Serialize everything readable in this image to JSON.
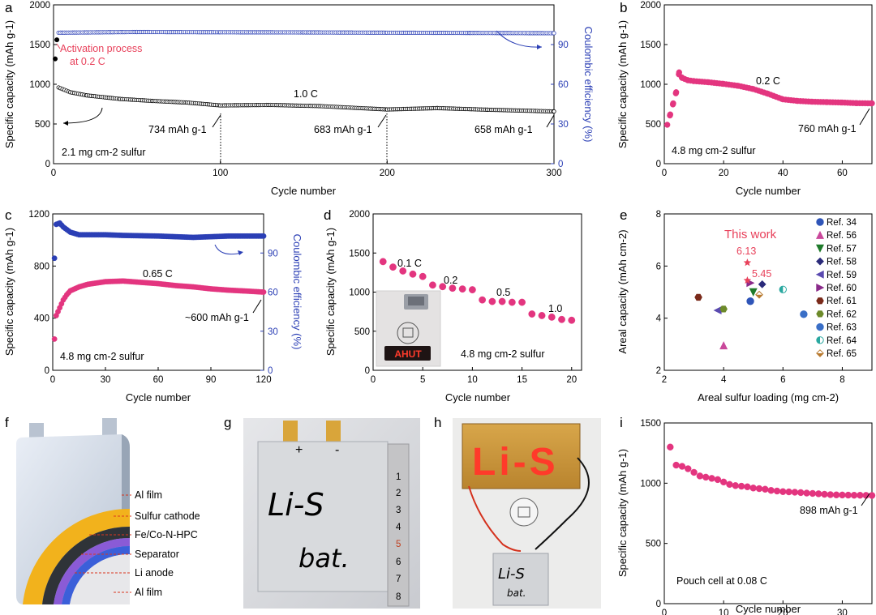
{
  "chart_data": [
    {
      "panel": "a",
      "type": "scatter",
      "xlabel": "Cycle number",
      "ylabel": "Specific capacity (mAh g-1)",
      "y2label": "Coulombic efficiency (%)",
      "xlim": [
        0,
        300
      ],
      "ylim": [
        0,
        2000
      ],
      "y2lim": [
        0,
        120
      ],
      "xticks": [
        0,
        100,
        200,
        300
      ],
      "yticks": [
        0,
        500,
        1000,
        1500,
        2000
      ],
      "y2ticks": [
        0,
        30,
        60,
        90
      ],
      "series": [
        {
          "axis": "left",
          "color": "#000000",
          "activation": [
            [
              1,
              1320
            ],
            [
              2,
              1560
            ]
          ],
          "curve": [
            [
              3,
              960
            ],
            [
              10,
              900
            ],
            [
              20,
              860
            ],
            [
              40,
              815
            ],
            [
              60,
              790
            ],
            [
              80,
              770
            ],
            [
              100,
              734
            ],
            [
              130,
              740
            ],
            [
              160,
              725
            ],
            [
              200,
              683
            ],
            [
              230,
              700
            ],
            [
              260,
              680
            ],
            [
              300,
              658
            ]
          ]
        },
        {
          "axis": "right",
          "color": "#2b3fb5",
          "curve": [
            [
              3,
              99
            ],
            [
              50,
              99.5
            ],
            [
              100,
              99.3
            ],
            [
              150,
              99.2
            ],
            [
              200,
              99
            ],
            [
              250,
              98.8
            ],
            [
              300,
              98.6
            ]
          ]
        }
      ],
      "annotations": [
        {
          "text": "Activation process",
          "color": "#e8405a"
        },
        {
          "text": "at 0.2 C",
          "color": "#e8405a"
        },
        {
          "text": "1.0 C"
        },
        {
          "text": "734 mAh g-1",
          "x": 100,
          "y": 734
        },
        {
          "text": "683 mAh g-1",
          "x": 200,
          "y": 683
        },
        {
          "text": "658 mAh g-1",
          "x": 300,
          "y": 658
        },
        {
          "text": "2.1 mg cm-2 sulfur"
        }
      ]
    },
    {
      "panel": "b",
      "type": "scatter",
      "xlabel": "Cycle number",
      "ylabel": "Specific capacity (mAh g-1)",
      "xlim": [
        0,
        70
      ],
      "ylim": [
        0,
        2000
      ],
      "xticks": [
        0,
        20,
        40,
        60
      ],
      "yticks": [
        0,
        500,
        1000,
        1500,
        2000
      ],
      "series": [
        {
          "color": "#e3357f",
          "curve": [
            [
              1,
              490
            ],
            [
              2,
              620
            ],
            [
              3,
              760
            ],
            [
              4,
              900
            ],
            [
              5,
              1150
            ],
            [
              6,
              1080
            ],
            [
              8,
              1050
            ],
            [
              10,
              1040
            ],
            [
              15,
              1025
            ],
            [
              20,
              1005
            ],
            [
              25,
              980
            ],
            [
              30,
              940
            ],
            [
              35,
              880
            ],
            [
              40,
              810
            ],
            [
              45,
              790
            ],
            [
              50,
              780
            ],
            [
              55,
              775
            ],
            [
              60,
              770
            ],
            [
              65,
              762
            ],
            [
              70,
              760
            ]
          ]
        }
      ],
      "annotations": [
        {
          "text": "0.2 C"
        },
        {
          "text": "760 mAh g-1",
          "x": 70,
          "y": 760
        },
        {
          "text": "4.8 mg cm-2 sulfur"
        }
      ]
    },
    {
      "panel": "c",
      "type": "scatter",
      "xlabel": "Cycle number",
      "ylabel": "Specific capacity (mAh g-1)",
      "y2label": "Coulombic efficiency (%)",
      "xlim": [
        0,
        120
      ],
      "ylim": [
        0,
        1200
      ],
      "y2lim": [
        0,
        120
      ],
      "xticks": [
        0,
        30,
        60,
        90,
        120
      ],
      "yticks": [
        0,
        400,
        800,
        1200
      ],
      "y2ticks": [
        0,
        30,
        60,
        90
      ],
      "series": [
        {
          "axis": "left",
          "color": "#e3357f",
          "curve": [
            [
              1,
              240
            ],
            [
              2,
              420
            ],
            [
              4,
              480
            ],
            [
              6,
              540
            ],
            [
              8,
              580
            ],
            [
              10,
              610
            ],
            [
              15,
              640
            ],
            [
              20,
              660
            ],
            [
              30,
              680
            ],
            [
              40,
              685
            ],
            [
              50,
              675
            ],
            [
              60,
              665
            ],
            [
              70,
              650
            ],
            [
              80,
              640
            ],
            [
              90,
              625
            ],
            [
              100,
              615
            ],
            [
              110,
              608
            ],
            [
              120,
              600
            ]
          ]
        },
        {
          "axis": "right",
          "color": "#2b3fb5",
          "curve": [
            [
              1,
              86
            ],
            [
              2,
              112
            ],
            [
              4,
              113
            ],
            [
              6,
              110
            ],
            [
              8,
              108
            ],
            [
              10,
              106
            ],
            [
              15,
              104
            ],
            [
              20,
              104
            ],
            [
              30,
              104
            ],
            [
              40,
              103.5
            ],
            [
              60,
              103
            ],
            [
              80,
              102
            ],
            [
              100,
              103
            ],
            [
              120,
              103
            ]
          ]
        }
      ],
      "annotations": [
        {
          "text": "0.65 C"
        },
        {
          "text": "~600 mAh g-1",
          "x": 120,
          "y": 600
        },
        {
          "text": "4.8 mg cm-2 sulfur"
        }
      ]
    },
    {
      "panel": "d",
      "type": "scatter",
      "xlabel": "Cycle number",
      "ylabel": "Specific capacity (mAh g-1)",
      "xlim": [
        0,
        21
      ],
      "ylim": [
        0,
        2000
      ],
      "xticks": [
        0,
        5,
        10,
        15,
        20
      ],
      "yticks": [
        0,
        500,
        1000,
        1500,
        2000
      ],
      "series": [
        {
          "color": "#e3357f",
          "points": [
            [
              1,
              1390
            ],
            [
              2,
              1320
            ],
            [
              3,
              1270
            ],
            [
              4,
              1230
            ],
            [
              5,
              1200
            ],
            [
              6,
              1090
            ],
            [
              7,
              1070
            ],
            [
              8,
              1050
            ],
            [
              9,
              1040
            ],
            [
              10,
              1030
            ],
            [
              11,
              900
            ],
            [
              12,
              880
            ],
            [
              13,
              880
            ],
            [
              14,
              870
            ],
            [
              15,
              870
            ],
            [
              16,
              720
            ],
            [
              17,
              700
            ],
            [
              18,
              680
            ],
            [
              19,
              650
            ],
            [
              20,
              640
            ]
          ]
        }
      ],
      "annotations": [
        {
          "text": "0.1 C"
        },
        {
          "text": "0.2"
        },
        {
          "text": "0.5"
        },
        {
          "text": "1.0"
        },
        {
          "text": "4.8 mg cm-2 sulfur"
        }
      ],
      "inset": {
        "label": "AHUT"
      }
    },
    {
      "panel": "e",
      "type": "scatter",
      "xlabel": "Areal sulfur loading (mg cm-2)",
      "ylabel": "Areal capacity (mAh cm-2)",
      "xlim": [
        2,
        9
      ],
      "ylim": [
        2,
        8
      ],
      "xticks": [
        2,
        4,
        6,
        8
      ],
      "yticks": [
        2,
        4,
        6,
        8
      ],
      "highlight": {
        "text": "This work",
        "color": "#e8405a",
        "points": [
          {
            "x": 4.8,
            "y": 6.13,
            "label": "6.13"
          },
          {
            "x": 4.8,
            "y": 5.45,
            "label": "5.45"
          }
        ]
      },
      "series": [
        {
          "name": "Ref. 34",
          "color": "#2f55b8",
          "marker": "circle",
          "x": 4.9,
          "y": 4.65
        },
        {
          "name": "Ref. 56",
          "color": "#c9489b",
          "marker": "triangle-up",
          "x": 4.0,
          "y": 2.95
        },
        {
          "name": "Ref. 57",
          "color": "#1f7a2a",
          "marker": "triangle-down",
          "x": 5.0,
          "y": 5.0
        },
        {
          "name": "Ref. 58",
          "color": "#2b2b7a",
          "marker": "diamond",
          "x": 5.3,
          "y": 5.3
        },
        {
          "name": "Ref. 59",
          "color": "#5a4ab0",
          "marker": "triangle-left",
          "x": 3.8,
          "y": 4.3
        },
        {
          "name": "Ref. 60",
          "color": "#8a2a8a",
          "marker": "triangle-right",
          "x": 4.9,
          "y": 5.35
        },
        {
          "name": "Ref. 61",
          "color": "#7a2a1a",
          "marker": "hexagon",
          "x": 3.15,
          "y": 4.8
        },
        {
          "name": "Ref. 62",
          "color": "#6d8a2a",
          "marker": "hexagon",
          "x": 4.0,
          "y": 4.35
        },
        {
          "name": "Ref. 63",
          "color": "#3a6fc7",
          "marker": "circle",
          "x": 6.7,
          "y": 4.15
        },
        {
          "name": "Ref. 64",
          "color": "#2aa8a0",
          "marker": "half-circle",
          "x": 6.0,
          "y": 5.1
        },
        {
          "name": "Ref. 65",
          "color": "#b87a30",
          "marker": "half-diamond",
          "x": 5.2,
          "y": 4.9
        }
      ]
    },
    {
      "panel": "i",
      "type": "scatter",
      "xlabel": "Cycle number",
      "ylabel": "Specific capacity (mAh g-1)",
      "xlim": [
        0,
        35
      ],
      "ylim": [
        0,
        1500
      ],
      "xticks": [
        0,
        10,
        20,
        30
      ],
      "yticks": [
        0,
        500,
        1000,
        1500
      ],
      "series": [
        {
          "color": "#e3357f",
          "points": [
            [
              1,
              1300
            ],
            [
              2,
              1150
            ],
            [
              3,
              1140
            ],
            [
              4,
              1120
            ],
            [
              5,
              1090
            ],
            [
              6,
              1060
            ],
            [
              7,
              1050
            ],
            [
              8,
              1040
            ],
            [
              9,
              1030
            ],
            [
              10,
              1010
            ],
            [
              11,
              990
            ],
            [
              12,
              980
            ],
            [
              13,
              975
            ],
            [
              14,
              970
            ],
            [
              15,
              960
            ],
            [
              16,
              955
            ],
            [
              17,
              950
            ],
            [
              18,
              940
            ],
            [
              19,
              935
            ],
            [
              20,
              930
            ],
            [
              21,
              928
            ],
            [
              22,
              925
            ],
            [
              23,
              922
            ],
            [
              24,
              918
            ],
            [
              25,
              915
            ],
            [
              26,
              912
            ],
            [
              27,
              908
            ],
            [
              28,
              905
            ],
            [
              29,
              903
            ],
            [
              30,
              902
            ],
            [
              31,
              901
            ],
            [
              32,
              900
            ],
            [
              33,
              900
            ],
            [
              34,
              899
            ],
            [
              35,
              898
            ]
          ]
        }
      ],
      "annotations": [
        {
          "text": "898 mAh g-1",
          "x": 35,
          "y": 898
        },
        {
          "text": "Pouch cell at 0.08 C"
        }
      ]
    }
  ],
  "panel_letters": [
    "a",
    "b",
    "c",
    "d",
    "e",
    "f",
    "g",
    "h",
    "i"
  ],
  "schematic_f": {
    "layers": [
      "Al film",
      "Sulfur cathode",
      "Fe/Co-N-HPC",
      "Separator",
      "Li anode",
      "Al film"
    ],
    "layer_colors": [
      "#c4ccd8",
      "#f2b21c",
      "#2f3338",
      "#8a5bd6",
      "#3b5fd9",
      "#e7e7ea"
    ]
  },
  "photo_g": {
    "handwriting": [
      "Li-S",
      "bat."
    ],
    "terminal_marks": [
      "+",
      "-"
    ],
    "ruler_numbers": [
      "1",
      "2",
      "3",
      "4",
      "5",
      "6",
      "7",
      "8"
    ]
  },
  "photo_h": {
    "led_text": "Li-S",
    "handwriting": [
      "Li-S",
      "bat."
    ]
  }
}
